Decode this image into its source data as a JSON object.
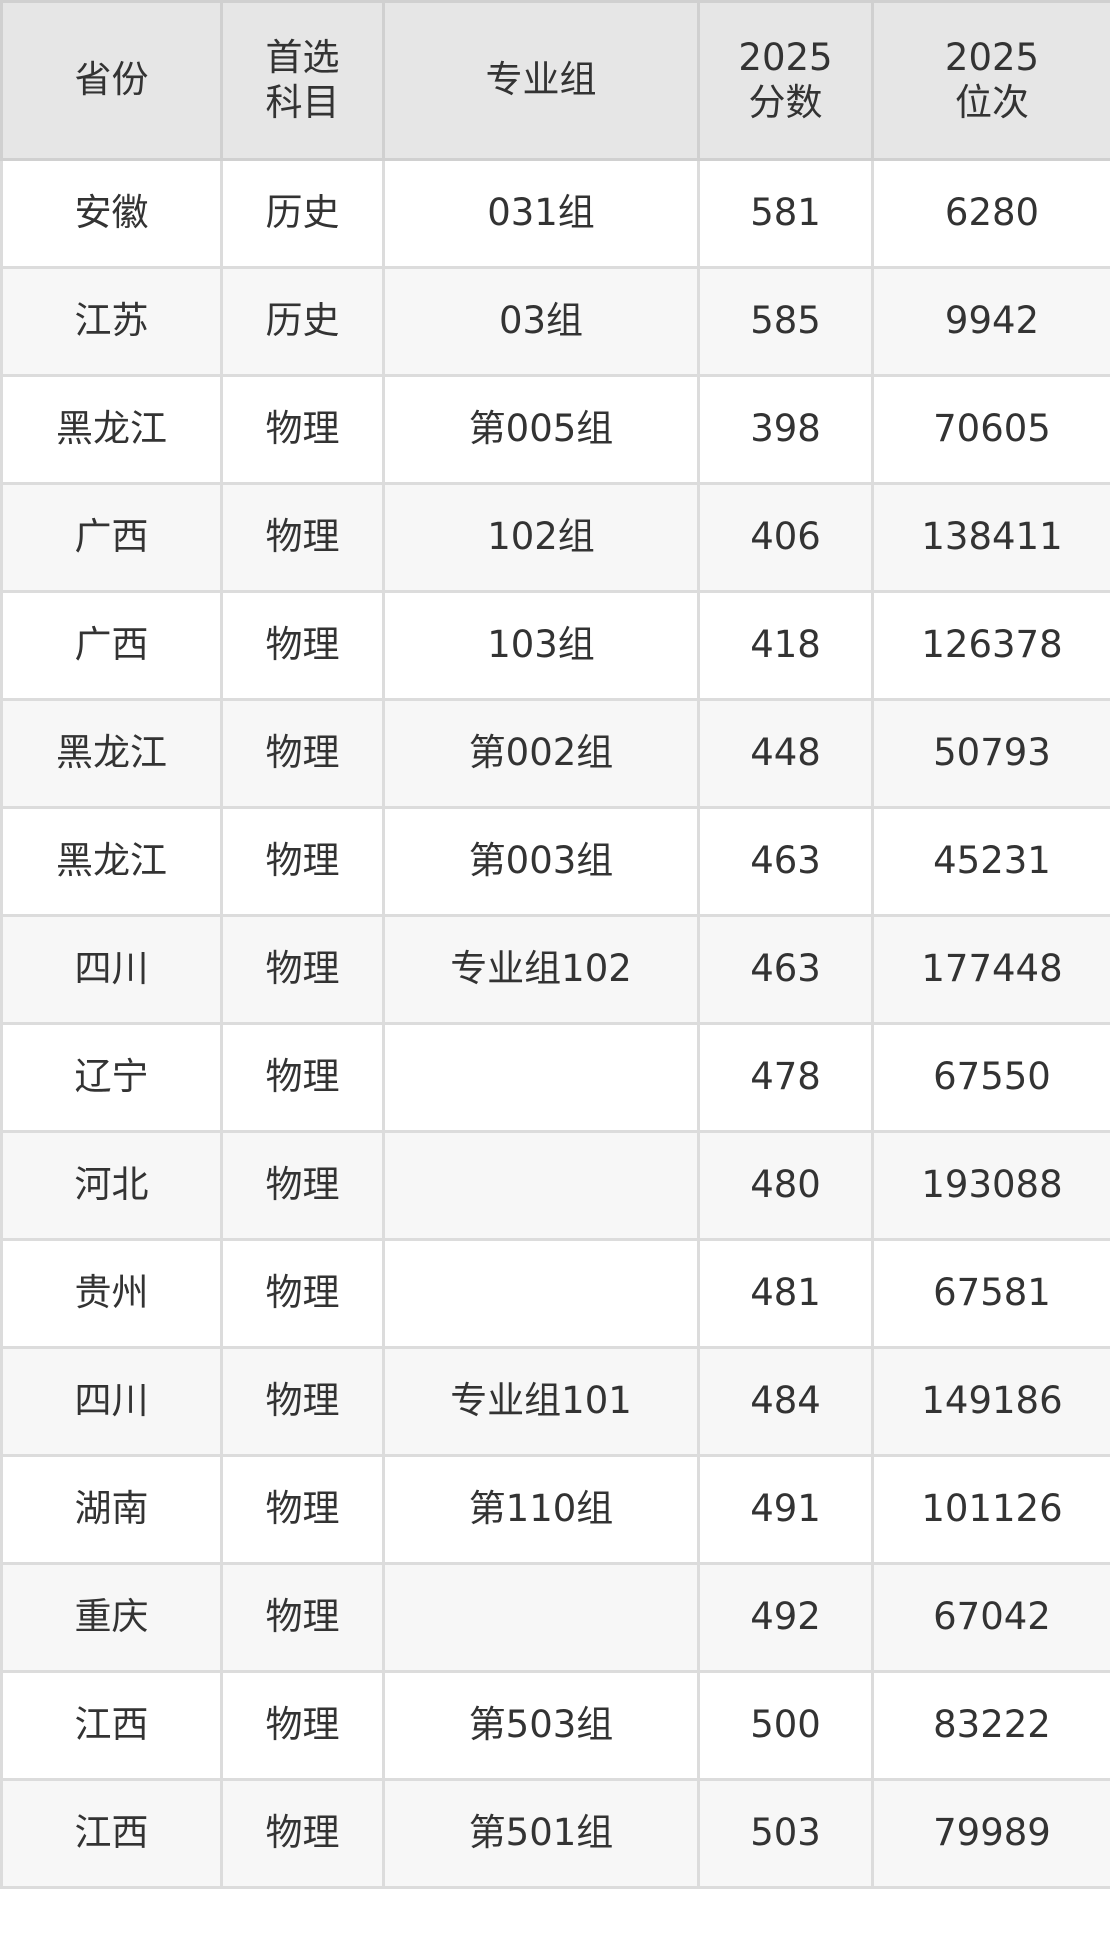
{
  "headers": [
    "省份",
    "首选\n科目",
    "专业组",
    "2025\n分数",
    "2025\n位次"
  ],
  "rows": [
    [
      "安徽",
      "历史",
      "031组",
      "581",
      "6280"
    ],
    [
      "江苏",
      "历史",
      "03组",
      "585",
      "9942"
    ],
    [
      "黑龙江",
      "物理",
      "第005组",
      "398",
      "70605"
    ],
    [
      "广西",
      "物理",
      "102组",
      "406",
      "138411"
    ],
    [
      "广西",
      "物理",
      "103组",
      "418",
      "126378"
    ],
    [
      "黑龙江",
      "物理",
      "第002组",
      "448",
      "50793"
    ],
    [
      "黑龙江",
      "物理",
      "第003组",
      "463",
      "45231"
    ],
    [
      "四川",
      "物理",
      "专业组102",
      "463",
      "177448"
    ],
    [
      "辽宁",
      "物理",
      "",
      "478",
      "67550"
    ],
    [
      "河北",
      "物理",
      "",
      "480",
      "193088"
    ],
    [
      "贵州",
      "物理",
      "",
      "481",
      "67581"
    ],
    [
      "四川",
      "物理",
      "专业组101",
      "484",
      "149186"
    ],
    [
      "湖南",
      "物理",
      "第110组",
      "491",
      "101126"
    ],
    [
      "重庆",
      "物理",
      "",
      "492",
      "67042"
    ],
    [
      "江西",
      "物理",
      "第503组",
      "500",
      "83222"
    ],
    [
      "江西",
      "物理",
      "第501组",
      "503",
      "79989"
    ]
  ]
}
